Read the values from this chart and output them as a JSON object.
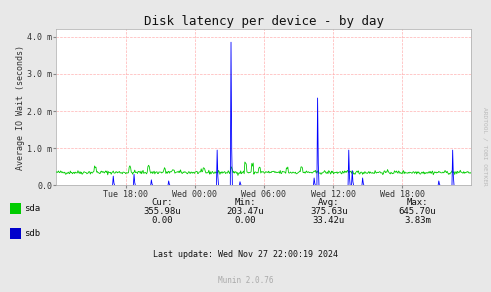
{
  "title": "Disk latency per device - by day",
  "ylabel": "Average IO Wait (seconds)",
  "bg_color": "#e8e8e8",
  "plot_bg_color": "#ffffff",
  "grid_color": "#ffaaaa",
  "sda_color": "#00cc00",
  "sdb_color": "#0000ff",
  "x_ticks_labels": [
    "Tue 18:00",
    "Wed 00:00",
    "Wed 06:00",
    "Wed 12:00",
    "Wed 18:00"
  ],
  "ytick_labels": [
    "0.0",
    "1.0 m",
    "2.0 m",
    "3.0 m",
    "4.0 m"
  ],
  "ytick_values": [
    0.0,
    1.0,
    2.0,
    3.0,
    4.0
  ],
  "ylim": [
    0.0,
    4.2
  ],
  "legend_entries": [
    "sda",
    "sdb"
  ],
  "legend_colors": [
    "#00cc00",
    "#0000cc"
  ],
  "footer_text": "Last update: Wed Nov 27 22:00:19 2024",
  "munin_text": "Munin 2.0.76",
  "stats_headers": [
    "Cur:",
    "Min:",
    "Avg:",
    "Max:"
  ],
  "sda_stats": [
    "355.98u",
    "203.47u",
    "375.63u",
    "645.70u"
  ],
  "sdb_stats": [
    "0.00",
    "0.00",
    "33.42u",
    "3.83m"
  ],
  "watermark": "ARDTOOL / TOBI OETKER"
}
